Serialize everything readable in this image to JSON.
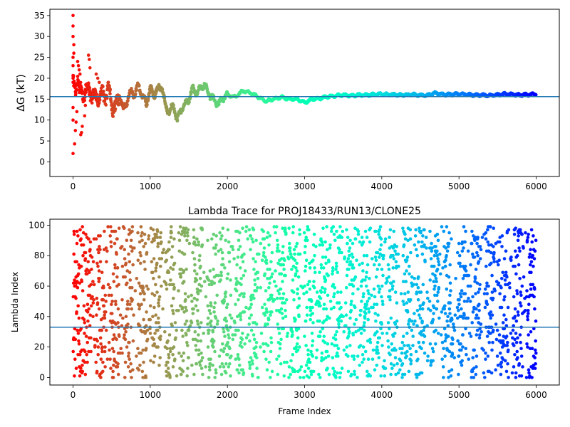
{
  "chart_data": [
    {
      "type": "scatter",
      "title": "",
      "xlabel": "",
      "ylabel": "ΔG (kT)",
      "xlim": [
        -300,
        6300
      ],
      "ylim": [
        -3.5,
        36.5
      ],
      "xticks": [
        0,
        1000,
        2000,
        3000,
        4000,
        5000,
        6000
      ],
      "yticks": [
        0,
        5,
        10,
        15,
        20,
        25,
        30,
        35
      ],
      "xtick_labels": [
        "0",
        "1000",
        "2000",
        "3000",
        "4000",
        "5000",
        "6000"
      ],
      "ytick_labels": [
        "0",
        "5",
        "10",
        "15",
        "20",
        "25",
        "30",
        "35"
      ],
      "hline": 15.6,
      "hline_color": "#1f77b4",
      "colormap": "rainbow (red at frame 0 → violet at frame 6000)",
      "x_range": [
        0,
        6000
      ],
      "n_points": 6000,
      "trace_points": [
        [
          0,
          20.0
        ],
        [
          30,
          15.0
        ],
        [
          60,
          20.5
        ],
        [
          100,
          17.0
        ],
        [
          130,
          15.0
        ],
        [
          170,
          19.0
        ],
        [
          210,
          15.5
        ],
        [
          260,
          17.0
        ],
        [
          300,
          14.0
        ],
        [
          350,
          16.5
        ],
        [
          400,
          15.0
        ],
        [
          450,
          17.5
        ],
        [
          500,
          14.0
        ],
        [
          550,
          12.5
        ],
        [
          600,
          16.0
        ],
        [
          650,
          12.5
        ],
        [
          700,
          14.5
        ],
        [
          750,
          17.0
        ],
        [
          800,
          16.0
        ],
        [
          850,
          18.5
        ],
        [
          900,
          15.5
        ],
        [
          950,
          14.0
        ],
        [
          1000,
          17.5
        ],
        [
          1050,
          16.0
        ],
        [
          1100,
          17.5
        ],
        [
          1150,
          18.0
        ],
        [
          1200,
          13.0
        ],
        [
          1250,
          12.0
        ],
        [
          1300,
          13.5
        ],
        [
          1350,
          10.0
        ],
        [
          1400,
          12.5
        ],
        [
          1450,
          13.5
        ],
        [
          1500,
          15.0
        ],
        [
          1550,
          17.5
        ],
        [
          1600,
          16.5
        ],
        [
          1650,
          17.5
        ],
        [
          1700,
          18.5
        ],
        [
          1750,
          16.5
        ],
        [
          1800,
          15.5
        ],
        [
          1850,
          14.0
        ],
        [
          1900,
          14.0
        ],
        [
          1950,
          15.5
        ],
        [
          2000,
          16.0
        ],
        [
          2100,
          15.5
        ],
        [
          2200,
          17.0
        ],
        [
          2300,
          16.5
        ],
        [
          2400,
          15.5
        ],
        [
          2500,
          14.5
        ],
        [
          2600,
          15.0
        ],
        [
          2700,
          15.5
        ],
        [
          2800,
          15.0
        ],
        [
          2900,
          15.0
        ],
        [
          3000,
          14.2
        ],
        [
          3100,
          15.0
        ],
        [
          3200,
          15.2
        ],
        [
          3300,
          15.6
        ],
        [
          3400,
          15.8
        ],
        [
          3500,
          16.0
        ],
        [
          3600,
          15.8
        ],
        [
          3700,
          16.0
        ],
        [
          3800,
          16.0
        ],
        [
          3900,
          16.1
        ],
        [
          4000,
          16.2
        ],
        [
          4200,
          16.0
        ],
        [
          4400,
          16.1
        ],
        [
          4500,
          15.9
        ],
        [
          4600,
          16.0
        ],
        [
          4700,
          16.5
        ],
        [
          4800,
          16.1
        ],
        [
          5000,
          16.2
        ],
        [
          5200,
          16.0
        ],
        [
          5400,
          15.9
        ],
        [
          5600,
          16.2
        ],
        [
          5800,
          16.0
        ],
        [
          6000,
          16.2
        ]
      ],
      "early_scatter_points": [
        [
          0,
          35.0
        ],
        [
          0,
          32.5
        ],
        [
          0,
          30.0
        ],
        [
          10,
          28.0
        ],
        [
          10,
          26.0
        ],
        [
          0,
          25.0
        ],
        [
          0,
          23.0
        ],
        [
          0,
          20.0
        ],
        [
          0,
          19.0
        ],
        [
          0,
          13.0
        ],
        [
          0,
          10.0
        ],
        [
          0,
          2.0
        ],
        [
          20,
          4.3
        ],
        [
          30,
          7.5
        ],
        [
          40,
          9.5
        ],
        [
          50,
          12.0
        ],
        [
          60,
          24.0
        ],
        [
          70,
          23.0
        ],
        [
          80,
          22.0
        ],
        [
          90,
          21.0
        ],
        [
          100,
          6.5
        ],
        [
          110,
          7.0
        ],
        [
          120,
          8.5
        ],
        [
          150,
          11.0
        ],
        [
          160,
          13.5
        ],
        [
          200,
          25.5
        ],
        [
          210,
          24.5
        ],
        [
          220,
          22.5
        ],
        [
          300,
          21.0
        ],
        [
          320,
          20.0
        ],
        [
          340,
          19.0
        ]
      ]
    },
    {
      "type": "scatter",
      "title": "Lambda Trace for PROJ18433/RUN13/CLONE25",
      "xlabel": "Frame Index",
      "ylabel": "Lambda Index",
      "xlim": [
        -300,
        6300
      ],
      "ylim": [
        -4.95,
        103.95
      ],
      "xticks": [
        0,
        1000,
        2000,
        3000,
        4000,
        5000,
        6000
      ],
      "yticks": [
        0,
        20,
        40,
        60,
        80,
        100
      ],
      "xtick_labels": [
        "0",
        "1000",
        "2000",
        "3000",
        "4000",
        "5000",
        "6000"
      ],
      "ytick_labels": [
        "0",
        "20",
        "40",
        "60",
        "80",
        "100"
      ],
      "hline": 33,
      "hline_color": "#1f77b4",
      "colormap": "rainbow (red at frame 0 → violet at frame 6000)",
      "x_range": [
        0,
        6000
      ],
      "y_range": [
        0,
        99
      ],
      "n_points": 6000
    }
  ]
}
